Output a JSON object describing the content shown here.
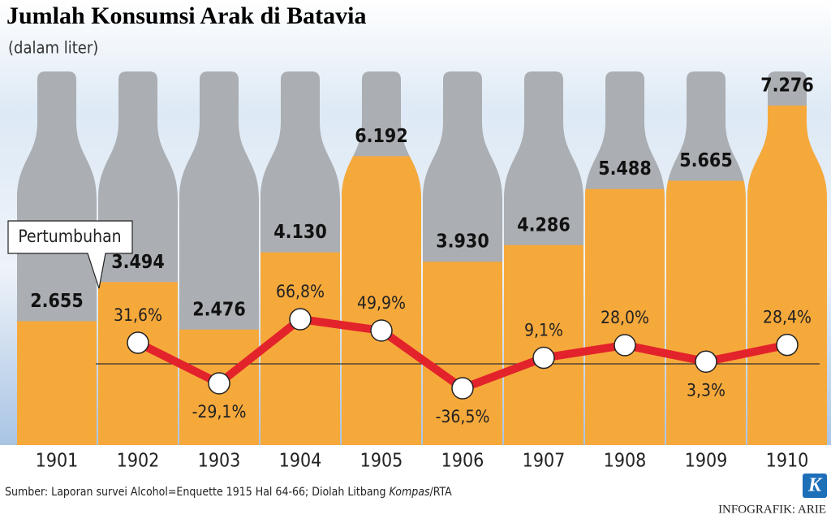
{
  "chart_data": {
    "type": "bar",
    "title": "Jumlah Konsumsi Arak di Batavia",
    "subtitle": "(dalam liter)",
    "categories": [
      "1901",
      "1902",
      "1903",
      "1904",
      "1905",
      "1906",
      "1907",
      "1908",
      "1909",
      "1910"
    ],
    "values": [
      2655,
      3494,
      2476,
      4130,
      6192,
      3930,
      4286,
      5488,
      5665,
      7276
    ],
    "value_labels": [
      "2.655",
      "3.494",
      "2.476",
      "4.130",
      "6.192",
      "3.930",
      "4.286",
      "5.488",
      "5.665",
      "7.276"
    ],
    "color": "#f6a93b",
    "bottle_color": "#abaeb2",
    "line": {
      "type": "line",
      "name": "Pertumbuhan",
      "color": "#e3232b",
      "values": [
        null,
        31.6,
        -29.1,
        66.8,
        49.9,
        -36.5,
        9.1,
        28.0,
        3.3,
        28.4
      ],
      "value_labels": [
        null,
        "31,6%",
        "-29,1%",
        "66,8%",
        "49,9%",
        "-36,5%",
        "9,1%",
        "28,0%",
        "3,3%",
        "28,4%"
      ]
    }
  },
  "source": [
    "Sumber: Laporan survei Alcohol=Enquette 1915 Hal 64-66; Diolah Litbang ",
    "Kompas",
    "/RTA"
  ],
  "credit": "INFOGRAFIK: ARIE",
  "logo": "K"
}
